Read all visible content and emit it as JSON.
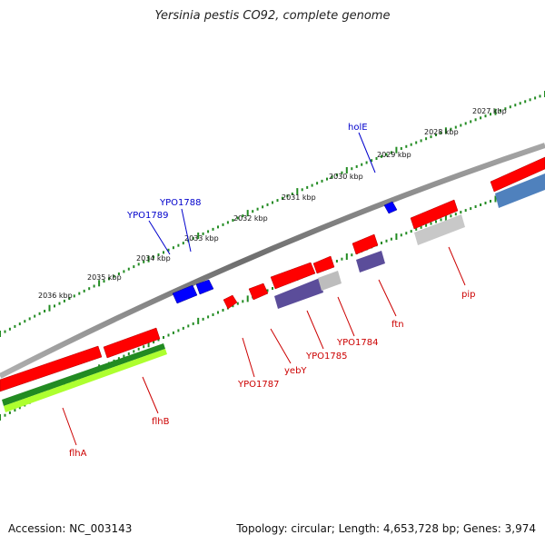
{
  "title": "Yersinia pestis CO92, complete genome",
  "footer": {
    "accession": "Accession: NC_003143",
    "topology": "Topology: circular; Length: 4,653,728 bp; Genes: 3,974"
  },
  "colors": {
    "forward_gene": "#ff0000",
    "reverse_gene": "#0000ff",
    "label_forward": "#cc0000",
    "label_reverse": "#0000cc",
    "scale_ticks": "#228b22",
    "backbone": "#808080",
    "track_green": "#228b22",
    "track_lime": "#adff2f",
    "track_purple": "#5b4d9a",
    "track_gray": "#bdbdbd",
    "track_steelblue": "#4f81bd"
  },
  "scale_labels": [
    "2027 kbp",
    "2028 kbp",
    "2029 kbp",
    "2030 kbp",
    "2031 kbp",
    "2032 kbp",
    "2033 kbp",
    "2034 kbp",
    "2035 kbp",
    "2036 kbp"
  ],
  "genes_forward": [
    "flhA",
    "flhB",
    "YPO1787",
    "yebY",
    "YPO1785",
    "YPO1784",
    "ftn",
    "pip"
  ],
  "genes_reverse": [
    "YPO1789",
    "YPO1788",
    "holE"
  ]
}
